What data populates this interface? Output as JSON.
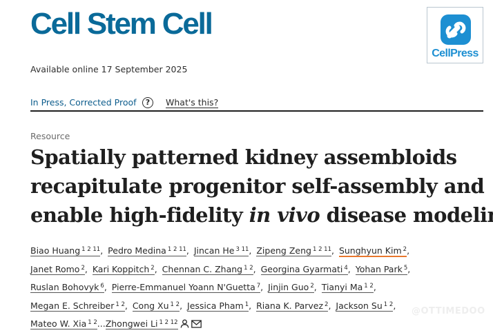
{
  "header": {
    "journal_title": "Cell Stem Cell",
    "publisher_logo_text": "CellPress",
    "publisher_logo_icon": "cellpress-logo-icon"
  },
  "availability": "Available online 17 September 2025",
  "status": {
    "in_press_label": "In Press, Corrected Proof",
    "help_icon_glyph": "?",
    "whats_this_label": "What's this?"
  },
  "article": {
    "type": "Resource",
    "title_lines": [
      "Spatially patterned kidney assembloids",
      "recapitulate progenitor self-assembly and",
      {
        "before": "enable high-fidelity ",
        "italic": "in vivo",
        "after": " disease modeling"
      }
    ]
  },
  "authors": [
    [
      {
        "name": "Biao Huang",
        "aff": "1 2 11"
      },
      {
        "name": "Pedro Medina",
        "aff": "1 2 11"
      },
      {
        "name": "Jincan He",
        "aff": "3 11"
      },
      {
        "name": "Zipeng Zeng",
        "aff": "1 2 11"
      },
      {
        "name": "Sunghyun Kim",
        "aff": "2",
        "highlight": true
      }
    ],
    [
      {
        "name": "Janet Romo",
        "aff": "2"
      },
      {
        "name": "Kari Koppitch",
        "aff": "2"
      },
      {
        "name": "Chennan C. Zhang",
        "aff": "1 2"
      },
      {
        "name": "Georgina Gyarmati",
        "aff": "4"
      },
      {
        "name": "Yohan Park",
        "aff": "5"
      }
    ],
    [
      {
        "name": "Ruslan Bohovyk",
        "aff": "6"
      },
      {
        "name": "Pierre-Emmanuel Yoann N'Guetta",
        "aff": "7"
      },
      {
        "name": "Jinjin Guo",
        "aff": "2"
      },
      {
        "name": "Tianyi Ma",
        "aff": "1 2"
      }
    ],
    [
      {
        "name": "Megan E. Schreiber",
        "aff": "1 2"
      },
      {
        "name": "Cong Xu",
        "aff": "1 2"
      },
      {
        "name": "Jessica Pham",
        "aff": "1"
      },
      {
        "name": "Riana K. Parvez",
        "aff": "2"
      },
      {
        "name": "Jackson Su",
        "aff": "1 2"
      }
    ]
  ],
  "last_line": {
    "first_author": {
      "name": "Mateo W. Xia",
      "aff": "1 2"
    },
    "ellipsis": "...",
    "corresponding_author": {
      "name": "Zhongwei Li",
      "aff": "1 2 12"
    },
    "icons": [
      "person-icon",
      "envelope-icon"
    ]
  },
  "watermark": "@OTTIMEDOO",
  "colors": {
    "journal_blue": "#0a6a99",
    "cellpress_blue": "#1d8fd2",
    "link_blue": "#0c5c8c",
    "highlight_orange": "#e8772e"
  }
}
